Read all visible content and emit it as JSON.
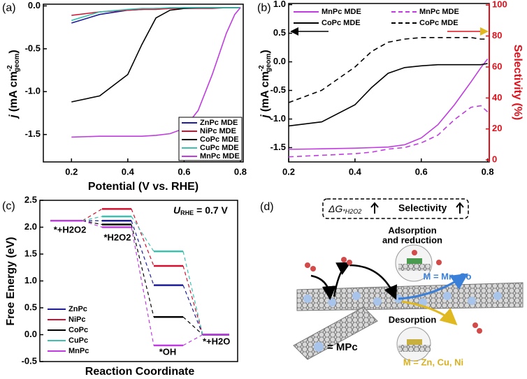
{
  "chart_data": [
    {
      "type": "line",
      "panel": "(a)",
      "xlabel": "Potential (V vs. RHE)",
      "ylabel": {
        "symbol": "j",
        "unit": "(mA cm",
        "sup": "-2",
        "sub": "geom",
        "close": ")"
      },
      "xlim": [
        0.1,
        0.81
      ],
      "ylim": [
        -1.82,
        0.02
      ],
      "xticks": [
        0.2,
        0.4,
        0.6,
        0.8
      ],
      "yticks": [
        {
          "value": 0,
          "label": "0.0"
        },
        -0.5,
        {
          "value": -1,
          "label": "-1.0"
        },
        -1.5
      ],
      "legend": "lower right",
      "x": [
        0.2,
        0.3,
        0.4,
        0.45,
        0.5,
        0.55,
        0.6,
        0.65,
        0.7,
        0.75,
        0.78,
        0.8
      ],
      "series": [
        {
          "name": "ZnPc MDE",
          "color": "#1c1c9c",
          "values": [
            -0.2,
            -0.1,
            -0.05,
            -0.04,
            -0.03,
            -0.03,
            -0.02,
            -0.02,
            -0.02,
            -0.02,
            -0.02,
            -0.02
          ]
        },
        {
          "name": "NiPc MDE",
          "color": "#d0102e",
          "values": [
            -0.11,
            -0.07,
            -0.05,
            -0.04,
            -0.04,
            -0.03,
            -0.03,
            -0.03,
            -0.03,
            -0.02,
            -0.02,
            -0.02
          ]
        },
        {
          "name": "CoPc MDE",
          "color": "#000000",
          "values": [
            -1.12,
            -1.05,
            -0.8,
            -0.45,
            -0.14,
            -0.05,
            -0.03,
            -0.02,
            -0.02,
            -0.02,
            -0.02,
            -0.02
          ]
        },
        {
          "name": "CuPc MDE",
          "color": "#3cc0b0",
          "values": [
            -0.17,
            -0.07,
            -0.04,
            -0.03,
            -0.03,
            -0.02,
            -0.02,
            -0.02,
            -0.02,
            -0.02,
            -0.02,
            -0.02
          ]
        },
        {
          "name": "MnPc MDE",
          "color": "#c03ce0",
          "values": [
            -1.53,
            -1.52,
            -1.52,
            -1.52,
            -1.51,
            -1.49,
            -1.43,
            -1.22,
            -0.8,
            -0.32,
            -0.1,
            -0.02
          ]
        }
      ]
    },
    {
      "type": "line",
      "panel": "(b)",
      "ylabel": {
        "symbol": "j",
        "unit": "(mA cm",
        "sup": "-2",
        "sub": "geom",
        "close": ")"
      },
      "y2label": "Selectivity (%)",
      "y2color": "#e0101c",
      "xlim": [
        0.2,
        0.805
      ],
      "ylim": [
        -1.75,
        1.02
      ],
      "y2lim": [
        -1.3,
        101
      ],
      "xticks": [
        0.2,
        0.4,
        0.6,
        0.8
      ],
      "yticks": [
        {
          "value": 1,
          "label": "1.0"
        },
        0.5,
        {
          "value": 0,
          "label": "0.0"
        },
        -0.5,
        {
          "value": -1,
          "label": "-1.0"
        },
        -1.5
      ],
      "y2ticks": [
        0,
        20,
        40,
        60,
        80,
        100
      ],
      "legend": "upper",
      "x": [
        0.2,
        0.3,
        0.4,
        0.45,
        0.5,
        0.55,
        0.6,
        0.65,
        0.7,
        0.75,
        0.78,
        0.8
      ],
      "series": [
        {
          "name": "MnPc MDE",
          "color": "#c03ce0",
          "values": [
            -1.53,
            -1.52,
            -1.51,
            -1.5,
            -1.49,
            -1.45,
            -1.33,
            -1.1,
            -0.75,
            -0.35,
            -0.1,
            0.05
          ]
        },
        {
          "name": "CoPc MDE",
          "color": "#000000",
          "values": [
            -1.12,
            -1.05,
            -0.75,
            -0.45,
            -0.2,
            -0.1,
            -0.07,
            -0.05,
            -0.05,
            -0.05,
            -0.05,
            -0.03
          ]
        },
        {
          "name": "MnPc MDE",
          "color": "#c03ce0",
          "dash": true,
          "axis": "y2",
          "values": [
            2,
            3,
            4,
            5,
            7,
            8,
            11,
            16,
            26,
            34,
            35,
            31
          ]
        },
        {
          "name": "CoPc MDE",
          "color": "#000000",
          "dash": true,
          "axis": "y2",
          "values": [
            37,
            45,
            60,
            70,
            76,
            78,
            79,
            79,
            79,
            79,
            78,
            78
          ]
        }
      ]
    },
    {
      "type": "step",
      "panel": "(c)",
      "xlabel": "Reaction Coordinate",
      "ylabel": "Free Energy (eV)",
      "annotation": {
        "symbol": "U",
        "sub": "RHE",
        "text": "= 0.7 V"
      },
      "ylim": [
        -0.5,
        2.5
      ],
      "yticks": [
        -0.5,
        {
          "value": 0,
          "label": "0.0"
        },
        0.5,
        {
          "value": 1,
          "label": "1.0"
        },
        1.5,
        {
          "value": 2,
          "label": "2.0"
        },
        2.5
      ],
      "legend": "lower left",
      "categories": [
        "*+H2O2",
        "*H2O2",
        "*OH",
        "*+H2O"
      ],
      "series": [
        {
          "name": "ZnPc",
          "color": "#1c1c9c",
          "values": [
            2.12,
            2.12,
            0.92,
            0
          ]
        },
        {
          "name": "NiPc",
          "color": "#d0102e",
          "values": [
            2.12,
            2.34,
            1.28,
            0
          ]
        },
        {
          "name": "CoPc",
          "color": "#000000",
          "values": [
            2.12,
            2.05,
            0.33,
            0
          ]
        },
        {
          "name": "CuPc",
          "color": "#3cc0b0",
          "values": [
            2.12,
            2.2,
            1.55,
            0
          ]
        },
        {
          "name": "MnPc",
          "color": "#c03ce0",
          "values": [
            2.12,
            2.0,
            -0.2,
            0
          ]
        }
      ]
    }
  ],
  "diagram": {
    "panel": "(d)",
    "delta_g": {
      "symbol": "ΔG",
      "sub": "*H2O2"
    },
    "selectivity": "Selectivity",
    "adsorption": [
      "Adsorption",
      "and reduction"
    ],
    "adsorb_metals": "M = Mn, Co",
    "desorption": "Desorption",
    "legend": "= MPc",
    "desorb_metals": "M = Zn, Cu, Ni"
  }
}
